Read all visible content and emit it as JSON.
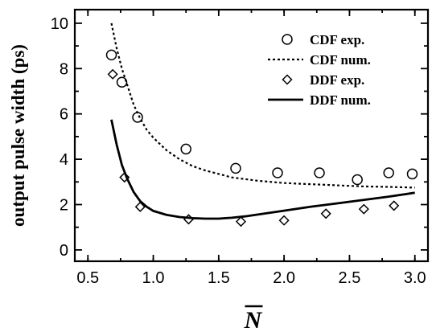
{
  "chart_data": {
    "type": "scatter",
    "xlabel": "N",
    "ylabel": "output pulse width (ps)",
    "xlim": [
      0.4,
      3.1
    ],
    "ylim": [
      -0.5,
      10.6
    ],
    "xticks": [
      "0.5",
      "1.0",
      "1.5",
      "2.0",
      "2.5",
      "3.0"
    ],
    "xtick_values": [
      0.5,
      1.0,
      1.5,
      2.0,
      2.5,
      3.0
    ],
    "yticks": [
      "0",
      "2",
      "4",
      "6",
      "8",
      "10"
    ],
    "ytick_values": [
      0,
      2,
      4,
      6,
      8,
      10
    ],
    "legend_position": "top-right",
    "series": [
      {
        "name": "CDF exp.",
        "kind": "markers",
        "marker": "circle",
        "x": [
          0.68,
          0.76,
          0.88,
          1.25,
          1.63,
          1.95,
          2.27,
          2.56,
          2.8,
          2.98
        ],
        "y": [
          8.6,
          7.4,
          5.85,
          4.45,
          3.6,
          3.4,
          3.4,
          3.1,
          3.4,
          3.35
        ]
      },
      {
        "name": "CDF num.",
        "kind": "line",
        "style": "dotted",
        "x": [
          0.68,
          0.72,
          0.76,
          0.8,
          0.85,
          0.9,
          0.95,
          1.0,
          1.1,
          1.2,
          1.3,
          1.4,
          1.5,
          1.6,
          1.8,
          2.0,
          2.2,
          2.4,
          2.6,
          2.8,
          3.0
        ],
        "y": [
          10.0,
          8.9,
          8.0,
          7.3,
          6.4,
          5.8,
          5.3,
          4.95,
          4.4,
          4.0,
          3.7,
          3.5,
          3.35,
          3.2,
          3.05,
          2.95,
          2.9,
          2.85,
          2.8,
          2.78,
          2.75
        ]
      },
      {
        "name": "DDF exp.",
        "kind": "markers",
        "marker": "diamond",
        "x": [
          0.69,
          0.78,
          0.9,
          1.27,
          1.67,
          2.0,
          2.32,
          2.61,
          2.84
        ],
        "y": [
          7.75,
          3.2,
          1.9,
          1.35,
          1.25,
          1.3,
          1.6,
          1.8,
          1.95
        ]
      },
      {
        "name": "DDF num.",
        "kind": "line",
        "style": "solid",
        "x": [
          0.68,
          0.72,
          0.76,
          0.8,
          0.85,
          0.9,
          0.95,
          1.0,
          1.1,
          1.2,
          1.3,
          1.4,
          1.5,
          1.6,
          1.7,
          1.8,
          2.0,
          2.2,
          2.4,
          2.6,
          2.8,
          3.0
        ],
        "y": [
          5.75,
          4.65,
          3.75,
          3.15,
          2.55,
          2.15,
          1.9,
          1.72,
          1.55,
          1.45,
          1.4,
          1.38,
          1.38,
          1.42,
          1.48,
          1.56,
          1.73,
          1.9,
          2.05,
          2.2,
          2.35,
          2.52
        ]
      }
    ]
  }
}
